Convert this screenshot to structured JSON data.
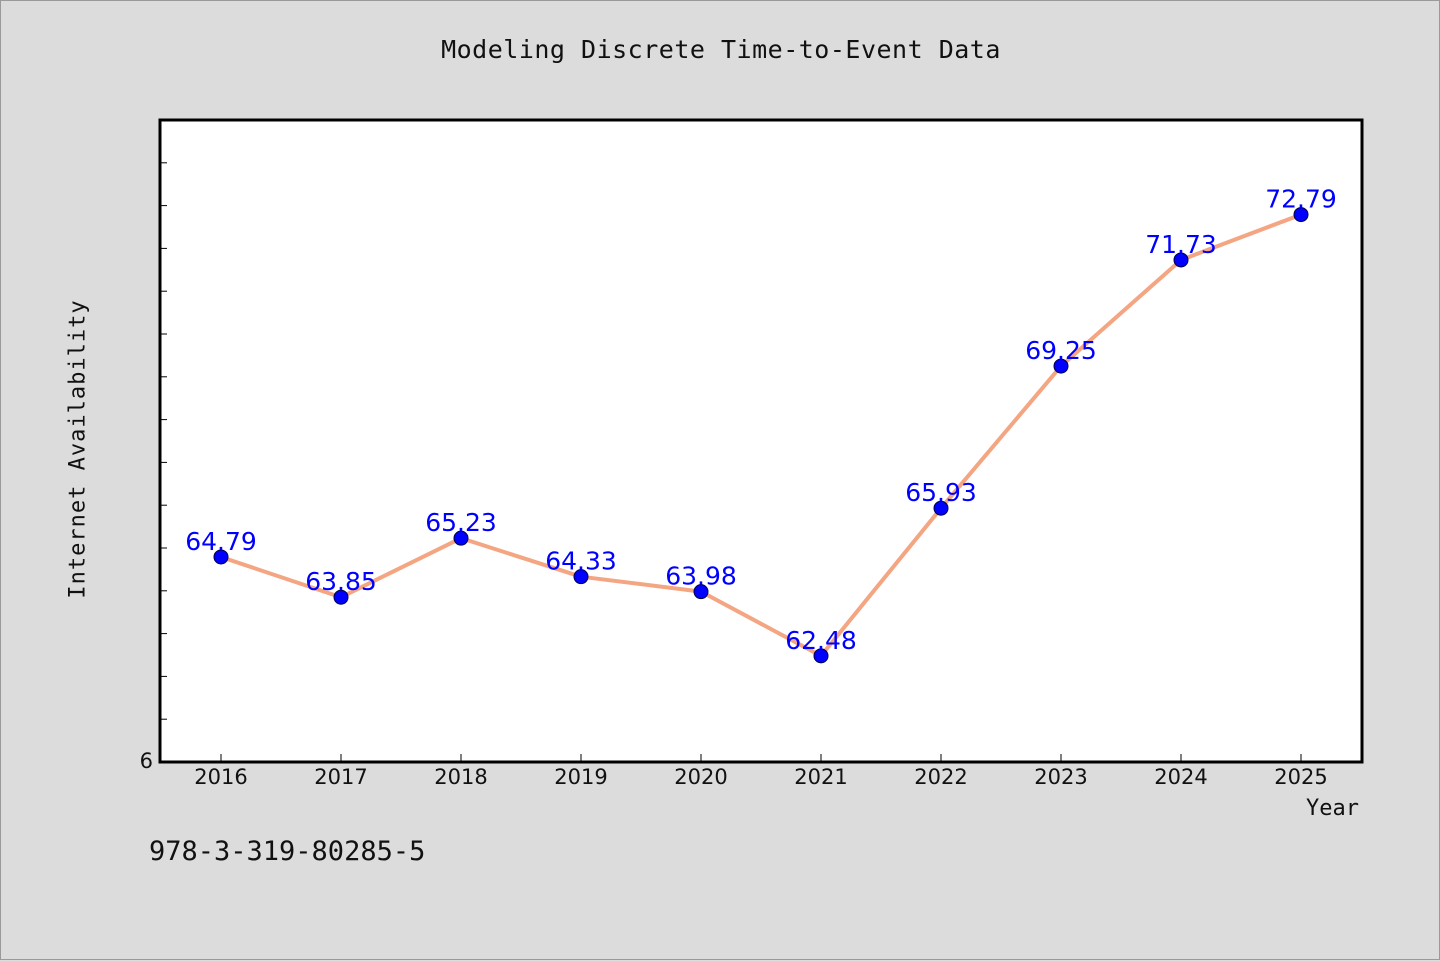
{
  "chart_data": {
    "type": "line",
    "title": "Modeling Discrete Time-to-Event Data",
    "xlabel": "Year",
    "ylabel": "Internet Availability",
    "categories": [
      "2016",
      "2017",
      "2018",
      "2019",
      "2020",
      "2021",
      "2022",
      "2023",
      "2024",
      "2025"
    ],
    "values": [
      64.79,
      63.85,
      65.23,
      64.33,
      63.98,
      62.48,
      65.93,
      69.25,
      71.73,
      72.79
    ],
    "data_labels": [
      "64.79",
      "63.85",
      "65.23",
      "64.33",
      "63.98",
      "62.48",
      "65.93",
      "69.25",
      "71.73",
      "72.79"
    ],
    "y_tick_label": "6",
    "ylim": [
      60,
      75
    ],
    "grid": false,
    "line_color": "#f4a582",
    "marker_color": "#0000ff",
    "label_color": "#0000ff"
  },
  "footer": {
    "code": "978-3-319-80285-5"
  }
}
